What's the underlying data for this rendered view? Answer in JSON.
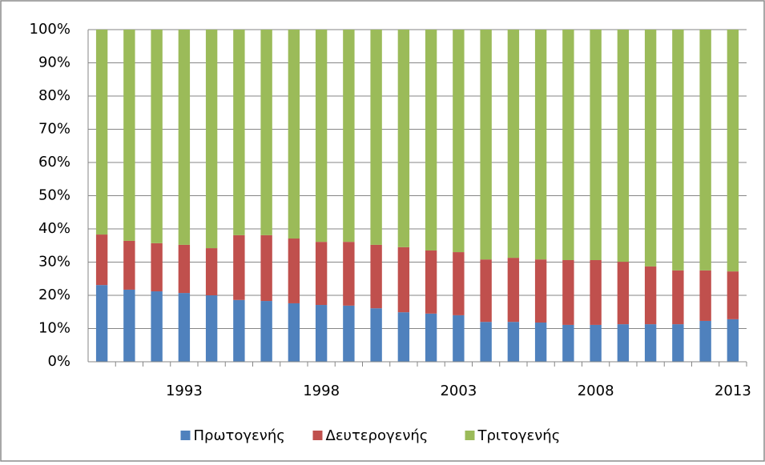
{
  "chart_data": {
    "type": "stacked_bar_100",
    "categories": [
      null,
      null,
      null,
      "1993",
      null,
      null,
      null,
      null,
      "1998",
      null,
      null,
      null,
      null,
      "2003",
      null,
      null,
      null,
      null,
      "2008",
      null,
      null,
      null,
      null,
      "2013"
    ],
    "series": [
      {
        "name": "Πρωτογενής",
        "color": "#4f81bd",
        "values": [
          23.1,
          21.7,
          21.2,
          20.7,
          20.0,
          18.6,
          18.3,
          17.6,
          17.1,
          16.9,
          16.1,
          14.9,
          14.5,
          14.0,
          12.0,
          12.0,
          11.8,
          11.1,
          11.1,
          11.3,
          11.3,
          11.3,
          12.3,
          12.8
        ]
      },
      {
        "name": "Δευτερογενής",
        "color": "#c0504d",
        "values": [
          15.2,
          14.7,
          14.5,
          14.5,
          14.2,
          19.5,
          19.8,
          19.5,
          19.0,
          19.2,
          19.1,
          19.6,
          19.0,
          19.0,
          18.8,
          19.3,
          19.0,
          19.5,
          19.5,
          18.8,
          17.4,
          16.2,
          15.2,
          14.4
        ]
      },
      {
        "name": "Τριτογενής",
        "color": "#9bbb59",
        "values": [
          61.7,
          63.6,
          64.3,
          64.8,
          65.8,
          61.9,
          61.9,
          62.9,
          63.9,
          63.9,
          64.8,
          65.5,
          66.5,
          67.0,
          69.2,
          68.7,
          69.2,
          69.4,
          69.4,
          69.9,
          71.3,
          72.5,
          72.5,
          72.8
        ]
      }
    ],
    "ylim": [
      0,
      100
    ],
    "yticks": [
      {
        "value": 0,
        "label": "0%"
      },
      {
        "value": 10,
        "label": "10%"
      },
      {
        "value": 20,
        "label": "20%"
      },
      {
        "value": 30,
        "label": "30%"
      },
      {
        "value": 40,
        "label": "40%"
      },
      {
        "value": 50,
        "label": "50%"
      },
      {
        "value": 60,
        "label": "60%"
      },
      {
        "value": 70,
        "label": "70%"
      },
      {
        "value": 80,
        "label": "80%"
      },
      {
        "value": 90,
        "label": "90%"
      },
      {
        "value": 100,
        "label": "100%"
      }
    ],
    "grid": true,
    "legend": "bottom"
  }
}
